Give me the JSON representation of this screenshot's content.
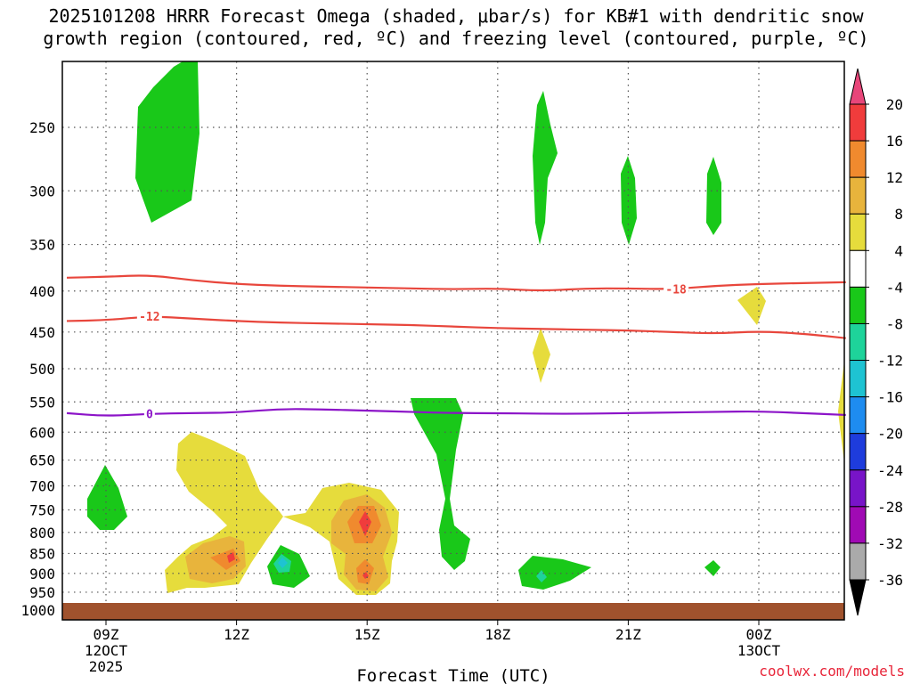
{
  "title": {
    "line1": "2025101208 HRRR Forecast Omega (shaded, μbar/s) for KB#1 with dendritic snow",
    "line2": "growth region (contoured, red, ºC) and freezing level (contoured, purple, ºC)"
  },
  "credit": "coolwx.com/models",
  "chart_data": {
    "type": "contour",
    "title": "2025101208 HRRR Forecast Omega (shaded, μbar/s) for KB#1 with dendritic snow growth region (contoured, red, ºC) and freezing level (contoured, purple, ºC)",
    "xlabel": "Forecast Time (UTC)",
    "ylabel": "",
    "x_ticks": [
      {
        "hour": 9,
        "label": "09Z",
        "sub1": "12OCT",
        "sub2": "2025"
      },
      {
        "hour": 12,
        "label": "12Z"
      },
      {
        "hour": 15,
        "label": "15Z"
      },
      {
        "hour": 18,
        "label": "18Z"
      },
      {
        "hour": 21,
        "label": "21Z"
      },
      {
        "hour": 24,
        "label": "00Z",
        "sub1": "13OCT"
      }
    ],
    "xlim": [
      8.1,
      26.0
    ],
    "y_ticks": [
      250,
      300,
      350,
      400,
      450,
      500,
      550,
      600,
      650,
      700,
      750,
      800,
      850,
      900,
      950,
      1000
    ],
    "ylim": [
      200,
      1020
    ],
    "colorbar": {
      "labels": [
        20,
        16,
        12,
        8,
        4,
        -4,
        -8,
        -12,
        -16,
        -20,
        -24,
        -28,
        -32,
        -36
      ],
      "colors": [
        "#e8467a",
        "#f03c3c",
        "#f08a2e",
        "#e8b43c",
        "#e6dc3c",
        "#ffffff",
        "#19c819",
        "#1ed39a",
        "#1ec3d2",
        "#1e8cf0",
        "#1e3cdc",
        "#7814c8",
        "#a00ab4",
        "#aaaaaa",
        "#000000"
      ]
    },
    "series": [
      {
        "name": "-18",
        "kind": "contour",
        "color": "#e8463c",
        "points": [
          [
            8.1,
            385
          ],
          [
            9,
            384
          ],
          [
            10,
            382
          ],
          [
            11,
            388
          ],
          [
            12,
            392
          ],
          [
            13,
            394
          ],
          [
            14,
            395
          ],
          [
            15,
            396
          ],
          [
            16,
            397
          ],
          [
            17,
            398
          ],
          [
            18,
            397
          ],
          [
            19,
            400
          ],
          [
            20,
            397
          ],
          [
            21,
            397
          ],
          [
            22,
            398
          ],
          [
            23,
            394
          ],
          [
            24,
            392
          ],
          [
            25,
            391
          ],
          [
            26,
            390
          ]
        ],
        "label_hour": 22.1
      },
      {
        "name": "-12",
        "kind": "contour",
        "color": "#e8463c",
        "points": [
          [
            8.1,
            436
          ],
          [
            9,
            435
          ],
          [
            10,
            430
          ],
          [
            11,
            433
          ],
          [
            12,
            436
          ],
          [
            13,
            438
          ],
          [
            14,
            439
          ],
          [
            15,
            440
          ],
          [
            16,
            441
          ],
          [
            17,
            443
          ],
          [
            18,
            445
          ],
          [
            19,
            446
          ],
          [
            20,
            447
          ],
          [
            21,
            448
          ],
          [
            22,
            450
          ],
          [
            23,
            452
          ],
          [
            24,
            449
          ],
          [
            25,
            452
          ],
          [
            26,
            458
          ]
        ],
        "label_hour": 10.0
      },
      {
        "name": "0",
        "kind": "contour",
        "color": "#8c14c8",
        "points": [
          [
            8.1,
            568
          ],
          [
            9,
            573
          ],
          [
            10,
            569
          ],
          [
            11,
            568
          ],
          [
            12,
            567
          ],
          [
            13,
            561
          ],
          [
            14,
            562
          ],
          [
            15,
            564
          ],
          [
            16,
            566
          ],
          [
            17,
            568
          ],
          [
            18,
            568
          ],
          [
            19,
            569
          ],
          [
            20,
            569
          ],
          [
            21,
            568
          ],
          [
            22,
            567
          ],
          [
            23,
            566
          ],
          [
            24,
            565
          ],
          [
            25,
            568
          ],
          [
            26,
            571
          ]
        ],
        "label_hour": 10.0
      }
    ],
    "terrain": {
      "from_pressure": 1000,
      "color": "#a0522d"
    }
  }
}
